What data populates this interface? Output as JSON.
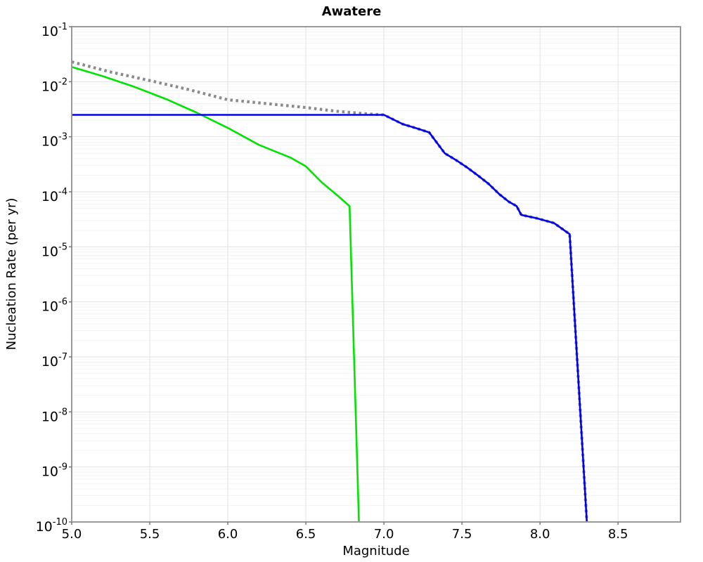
{
  "chart_data": {
    "type": "line",
    "title": "Awatere",
    "xlabel": "Magnitude",
    "ylabel": "Nucleation Rate (per yr)",
    "xlim": [
      5.0,
      8.9
    ],
    "ylim": [
      1e-10,
      0.1
    ],
    "x_scale": "linear",
    "y_scale": "log",
    "grid": true,
    "legend": "none",
    "x_ticks": [
      {
        "v": 5.0,
        "label": "5.0"
      },
      {
        "v": 5.5,
        "label": "5.5"
      },
      {
        "v": 6.0,
        "label": "6.0"
      },
      {
        "v": 6.5,
        "label": "6.5"
      },
      {
        "v": 7.0,
        "label": "7.0"
      },
      {
        "v": 7.5,
        "label": "7.5"
      },
      {
        "v": 8.0,
        "label": "8.0"
      },
      {
        "v": 8.5,
        "label": "8.5"
      }
    ],
    "y_tick_exponents": [
      -1,
      -2,
      -3,
      -4,
      -5,
      -6,
      -7,
      -8,
      -9,
      -10
    ],
    "colors": {
      "grid_major": "#e2e2e2",
      "grid_minor": "#f3f3f3",
      "frame": "#9a9a9a",
      "tick": "#777777"
    },
    "series": [
      {
        "name": "gray-dotted-total",
        "color": "#8a8a8a",
        "style": "dotted",
        "width": 4.2,
        "points": [
          [
            5.0,
            0.023
          ],
          [
            5.25,
            0.015
          ],
          [
            5.5,
            0.0105
          ],
          [
            5.75,
            0.0072
          ],
          [
            6.0,
            0.0047
          ],
          [
            6.25,
            0.004
          ],
          [
            6.5,
            0.0034
          ],
          [
            6.7,
            0.0029
          ],
          [
            6.9,
            0.0026
          ],
          [
            7.0,
            0.0025
          ],
          [
            7.12,
            0.0017
          ],
          [
            7.2,
            0.00145
          ],
          [
            7.29,
            0.0012
          ],
          [
            7.39,
            0.0005
          ],
          [
            7.46,
            0.00038
          ],
          [
            7.53,
            0.00028
          ],
          [
            7.6,
            0.0002
          ],
          [
            7.67,
            0.00014
          ],
          [
            7.74,
            9e-05
          ],
          [
            7.8,
            6.6e-05
          ],
          [
            7.85,
            5.5e-05
          ],
          [
            7.88,
            3.8e-05
          ],
          [
            7.98,
            3.3e-05
          ],
          [
            8.09,
            2.7e-05
          ],
          [
            8.19,
            1.7e-05
          ],
          [
            8.3,
            1e-10
          ]
        ]
      },
      {
        "name": "green-solid",
        "color": "#00e400",
        "style": "solid",
        "width": 2.6,
        "points": [
          [
            5.0,
            0.0186
          ],
          [
            5.2,
            0.0126
          ],
          [
            5.4,
            0.0081
          ],
          [
            5.6,
            0.0049
          ],
          [
            5.8,
            0.00275
          ],
          [
            6.0,
            0.00145
          ],
          [
            6.2,
            0.00071
          ],
          [
            6.4,
            0.00042
          ],
          [
            6.5,
            0.00029
          ],
          [
            6.6,
            0.00015
          ],
          [
            6.7,
            8.7e-05
          ],
          [
            6.78,
            5.5e-05
          ],
          [
            6.84,
            1e-10
          ]
        ]
      },
      {
        "name": "blue-solid",
        "color": "#0000f0",
        "style": "solid",
        "width": 2.6,
        "points": [
          [
            5.0,
            0.0025
          ],
          [
            7.0,
            0.0025
          ],
          [
            7.12,
            0.0017
          ],
          [
            7.2,
            0.00145
          ],
          [
            7.29,
            0.0012
          ],
          [
            7.39,
            0.0005
          ],
          [
            7.46,
            0.00038
          ],
          [
            7.53,
            0.00028
          ],
          [
            7.6,
            0.0002
          ],
          [
            7.67,
            0.00014
          ],
          [
            7.74,
            9e-05
          ],
          [
            7.8,
            6.6e-05
          ],
          [
            7.85,
            5.5e-05
          ],
          [
            7.88,
            3.8e-05
          ],
          [
            7.98,
            3.3e-05
          ],
          [
            8.09,
            2.7e-05
          ],
          [
            8.19,
            1.7e-05
          ],
          [
            8.3,
            1e-10
          ]
        ]
      }
    ]
  }
}
